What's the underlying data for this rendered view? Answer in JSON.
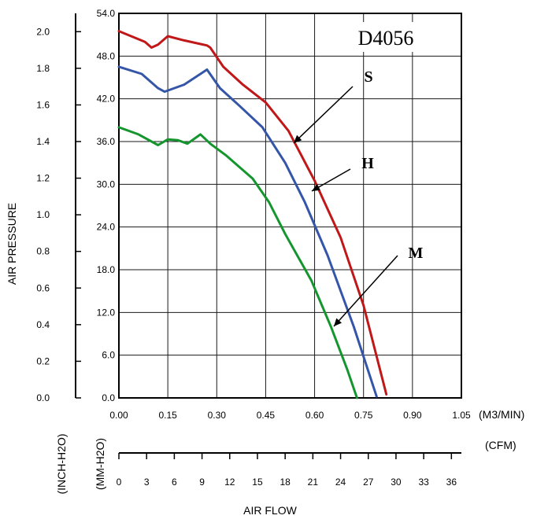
{
  "chart_data": {
    "type": "line",
    "title": "D4056",
    "left_axis_inch": {
      "title": "AIR PRESSURE",
      "unit": "(INCH-H2O)",
      "range": [
        0,
        2.1
      ],
      "ticks": [
        "0.0",
        "0.2",
        "0.4",
        "0.6",
        "0.8",
        "1.0",
        "1.2",
        "1.4",
        "1.6",
        "1.8",
        "2.0"
      ]
    },
    "left_axis_mm": {
      "unit": "(MM-H2O)",
      "range": [
        0,
        54
      ],
      "ticks": [
        "0.0",
        "6.0",
        "12.0",
        "18.0",
        "24.0",
        "30.0",
        "36.0",
        "42.0",
        "48.0",
        "54.0"
      ]
    },
    "x_axis_m3": {
      "unit": "(M3/MIN)",
      "range": [
        0,
        1.05
      ],
      "ticks": [
        "0.00",
        "0.15",
        "0.30",
        "0.45",
        "0.60",
        "0.75",
        "0.90",
        "1.05"
      ]
    },
    "x_axis_cfm": {
      "unit": "(CFM)",
      "title": "AIR FLOW",
      "range": [
        0,
        37.08
      ],
      "ticks": [
        "0",
        "3",
        "6",
        "9",
        "12",
        "15",
        "18",
        "21",
        "24",
        "27",
        "30",
        "33",
        "36"
      ]
    },
    "series": [
      {
        "name": "S",
        "color": "#c01818",
        "points": [
          [
            0,
            51.5
          ],
          [
            0.08,
            50
          ],
          [
            0.1,
            49.2
          ],
          [
            0.12,
            49.6
          ],
          [
            0.15,
            50.8
          ],
          [
            0.2,
            50.2
          ],
          [
            0.27,
            49.5
          ],
          [
            0.28,
            49.2
          ],
          [
            0.32,
            46.5
          ],
          [
            0.38,
            44
          ],
          [
            0.45,
            41.5
          ],
          [
            0.52,
            37.5
          ],
          [
            0.6,
            30.5
          ],
          [
            0.68,
            22.5
          ],
          [
            0.75,
            13
          ],
          [
            0.82,
            0.5
          ]
        ]
      },
      {
        "name": "H",
        "color": "#3556a8",
        "points": [
          [
            0,
            46.5
          ],
          [
            0.07,
            45.5
          ],
          [
            0.12,
            43.5
          ],
          [
            0.14,
            43
          ],
          [
            0.17,
            43.5
          ],
          [
            0.2,
            44
          ],
          [
            0.25,
            45.5
          ],
          [
            0.27,
            46.1
          ],
          [
            0.31,
            43.5
          ],
          [
            0.37,
            41
          ],
          [
            0.44,
            38
          ],
          [
            0.51,
            33
          ],
          [
            0.57,
            27.5
          ],
          [
            0.64,
            20
          ],
          [
            0.72,
            10
          ],
          [
            0.79,
            0.2
          ]
        ]
      },
      {
        "name": "M",
        "color": "#15952e",
        "points": [
          [
            0,
            38
          ],
          [
            0.06,
            37
          ],
          [
            0.12,
            35.5
          ],
          [
            0.15,
            36.3
          ],
          [
            0.18,
            36.2
          ],
          [
            0.21,
            35.7
          ],
          [
            0.25,
            37
          ],
          [
            0.28,
            35.7
          ],
          [
            0.33,
            34
          ],
          [
            0.41,
            30.8
          ],
          [
            0.46,
            27.5
          ],
          [
            0.51,
            23
          ],
          [
            0.59,
            16.5
          ],
          [
            0.65,
            10
          ],
          [
            0.7,
            4
          ],
          [
            0.73,
            0
          ]
        ]
      }
    ],
    "labels": [
      {
        "series": "S",
        "text": "S"
      },
      {
        "series": "H",
        "text": "H"
      },
      {
        "series": "M",
        "text": "M"
      }
    ],
    "grid": true
  }
}
